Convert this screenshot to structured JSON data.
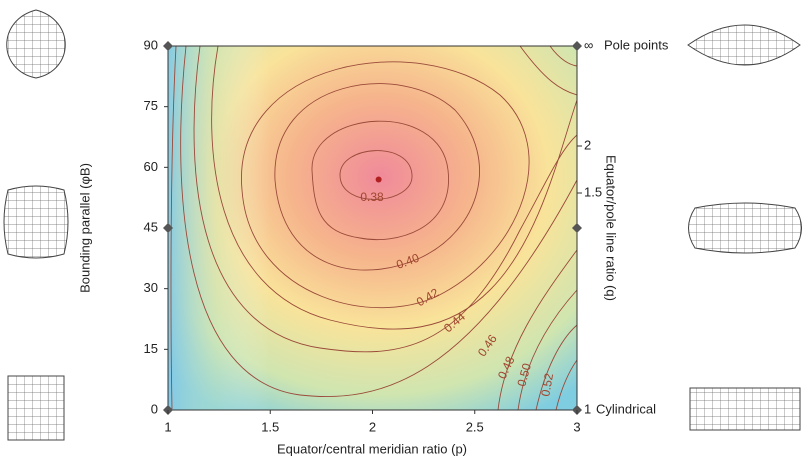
{
  "chart_data": {
    "type": "contour",
    "x_label": "Equator/central meridian ratio (p)",
    "y_label": "Bounding parallel (φB)",
    "y2_label": "Equator/pole line ratio (q)",
    "xlim": [
      1,
      3
    ],
    "xticks": [
      1,
      1.5,
      2,
      2.5,
      3
    ],
    "ylim": [
      0,
      90
    ],
    "yticks": [
      0,
      15,
      30,
      45,
      60,
      75,
      90
    ],
    "y2_labels": [
      "∞",
      "2",
      "1.5",
      "1"
    ],
    "annotations": [
      "Pole points",
      "Cylindrical"
    ],
    "levels": [
      0.38,
      0.4,
      0.42,
      0.44,
      0.46,
      0.48,
      0.5,
      0.52
    ],
    "level_labels": [
      "0.38",
      "0.40",
      "0.42",
      "0.44",
      "0.46",
      "0.48",
      "0.50",
      "0.52"
    ],
    "minimum": {
      "x": 2.03,
      "y": 57
    },
    "minimum_color": "#b02020"
  }
}
